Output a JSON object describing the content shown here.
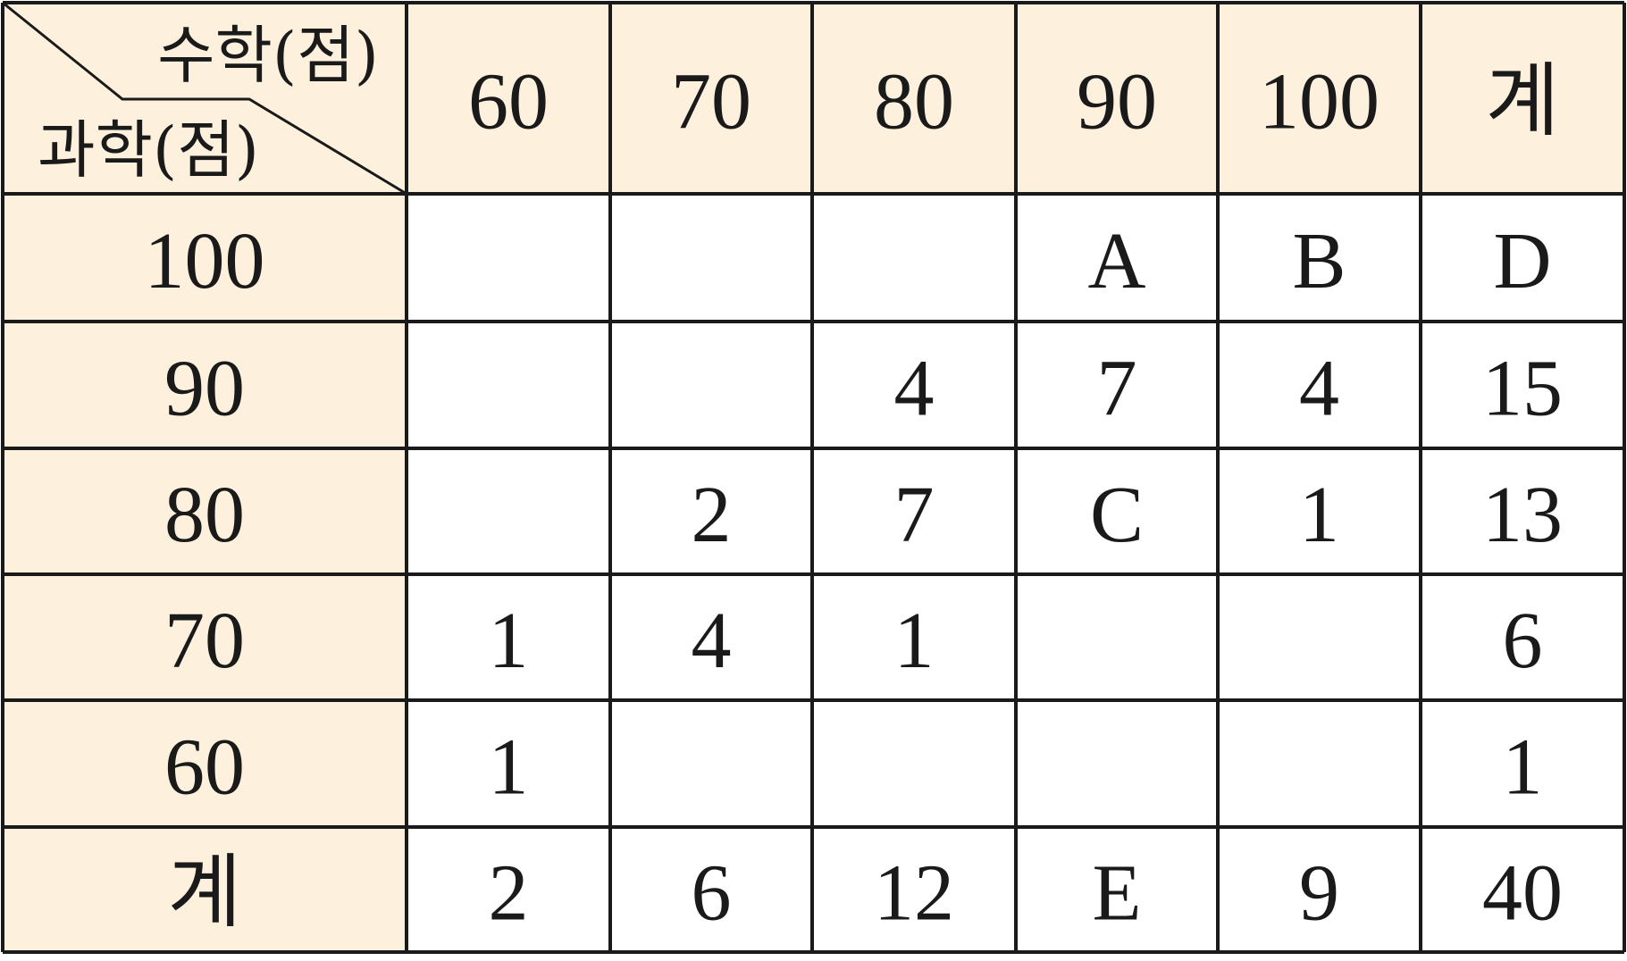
{
  "table": {
    "corner": {
      "top": "수학(점)",
      "bottom": "과학(점)"
    },
    "columns": [
      "60",
      "70",
      "80",
      "90",
      "100",
      "계"
    ],
    "rows": [
      {
        "label": "100",
        "cells": [
          null,
          null,
          null,
          "A",
          "B",
          "D"
        ]
      },
      {
        "label": "90",
        "cells": [
          null,
          null,
          4,
          7,
          4,
          15
        ]
      },
      {
        "label": "80",
        "cells": [
          null,
          2,
          7,
          "C",
          1,
          13
        ]
      },
      {
        "label": "70",
        "cells": [
          1,
          4,
          1,
          null,
          null,
          6
        ]
      },
      {
        "label": "60",
        "cells": [
          1,
          null,
          null,
          null,
          null,
          1
        ]
      },
      {
        "label": "계",
        "cells": [
          2,
          6,
          12,
          "E",
          9,
          40
        ]
      }
    ]
  }
}
